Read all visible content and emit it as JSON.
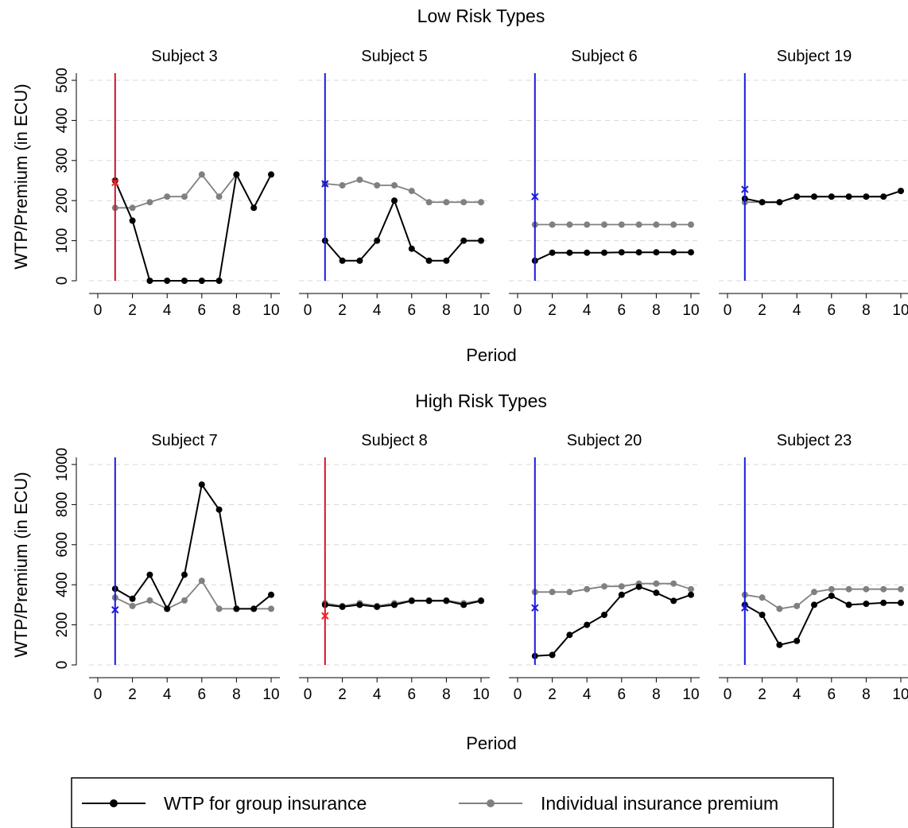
{
  "colors": {
    "wtp": "#000000",
    "premium": "#808080",
    "vline_red": "#d0112b",
    "vline_blue": "#1a1adb",
    "marker_red": "#ff2020",
    "marker_blue": "#1a1adb",
    "grid": "#d8d8d8"
  },
  "legend": {
    "wtp_label": "WTP for group insurance",
    "premium_label": "Individual insurance premium"
  },
  "chart_data": [
    {
      "type": "line",
      "title": "Low Risk Types",
      "xlabel": "Period",
      "ylabel": "WTP/Premium (in ECU)",
      "xlim": [
        0,
        10
      ],
      "xticks": [
        0,
        2,
        4,
        6,
        8,
        10
      ],
      "ylim": [
        0,
        500
      ],
      "yticks": [
        0,
        100,
        200,
        300,
        400,
        500
      ],
      "grid": true,
      "legend_position": "bottom",
      "panels": [
        {
          "subtitle": "Subject 3",
          "vline": {
            "x": 1,
            "color": "red"
          },
          "marker": {
            "x": 1,
            "y": 245,
            "color": "red"
          },
          "series": [
            {
              "key": "wtp",
              "x": [
                1,
                2,
                3,
                4,
                5,
                6,
                7,
                8,
                9,
                10
              ],
              "y": [
                250,
                150,
                0,
                0,
                0,
                0,
                0,
                265,
                182,
                265
              ]
            },
            {
              "key": "premium",
              "x": [
                1,
                2,
                3,
                4,
                5,
                6,
                7,
                8,
                9,
                10
              ],
              "y": [
                182,
                182,
                196,
                210,
                210,
                265,
                210,
                265,
                null,
                null
              ]
            }
          ]
        },
        {
          "subtitle": "Subject 5",
          "vline": {
            "x": 1,
            "color": "blue"
          },
          "marker": {
            "x": 1,
            "y": 242,
            "color": "blue"
          },
          "series": [
            {
              "key": "wtp",
              "x": [
                1,
                2,
                3,
                4,
                5,
                6,
                7,
                8,
                9,
                10
              ],
              "y": [
                100,
                50,
                50,
                100,
                200,
                80,
                50,
                50,
                100,
                100
              ]
            },
            {
              "key": "premium",
              "x": [
                1,
                2,
                3,
                4,
                5,
                6,
                7,
                8,
                9,
                10
              ],
              "y": [
                242,
                238,
                252,
                238,
                238,
                224,
                196,
                196,
                196,
                196
              ]
            }
          ]
        },
        {
          "subtitle": "Subject 6",
          "vline": {
            "x": 1,
            "color": "blue"
          },
          "marker": {
            "x": 1,
            "y": 210,
            "color": "blue"
          },
          "series": [
            {
              "key": "wtp",
              "x": [
                1,
                2,
                3,
                4,
                5,
                6,
                7,
                8,
                9,
                10
              ],
              "y": [
                50,
                70,
                70,
                70,
                70,
                71,
                71,
                71,
                71,
                71
              ]
            },
            {
              "key": "premium",
              "x": [
                1,
                2,
                3,
                4,
                5,
                6,
                7,
                8,
                9,
                10
              ],
              "y": [
                140,
                140,
                140,
                140,
                140,
                140,
                140,
                140,
                140,
                140
              ]
            }
          ]
        },
        {
          "subtitle": "Subject 19",
          "vline": {
            "x": 1,
            "color": "blue"
          },
          "marker": {
            "x": 1,
            "y": 228,
            "color": "blue"
          },
          "series": [
            {
              "key": "wtp",
              "x": [
                1,
                2,
                3,
                4,
                5,
                6,
                7,
                8,
                9,
                10
              ],
              "y": [
                205,
                196,
                196,
                210,
                210,
                210,
                210,
                210,
                210,
                224
              ]
            },
            {
              "key": "premium",
              "x": [
                1,
                2,
                3,
                4,
                5,
                6,
                7,
                8,
                9,
                10
              ],
              "y": [
                196,
                196,
                196,
                210,
                210,
                210,
                210,
                210,
                210,
                224
              ]
            }
          ]
        }
      ]
    },
    {
      "type": "line",
      "title": "High Risk Types",
      "xlabel": "Period",
      "ylabel": "WTP/Premium (in ECU)",
      "xlim": [
        0,
        10
      ],
      "xticks": [
        0,
        2,
        4,
        6,
        8,
        10
      ],
      "ylim": [
        0,
        1000
      ],
      "yticks": [
        0,
        200,
        400,
        600,
        800,
        1000
      ],
      "grid": true,
      "legend_position": "bottom",
      "panels": [
        {
          "subtitle": "Subject 7",
          "vline": {
            "x": 1,
            "color": "blue"
          },
          "marker": {
            "x": 1,
            "y": 275,
            "color": "blue"
          },
          "series": [
            {
              "key": "wtp",
              "x": [
                1,
                2,
                3,
                4,
                5,
                6,
                7,
                8,
                9,
                10
              ],
              "y": [
                380,
                330,
                450,
                280,
                450,
                900,
                775,
                280,
                280,
                350
              ]
            },
            {
              "key": "premium",
              "x": [
                1,
                2,
                3,
                4,
                5,
                6,
                7,
                8,
                9,
                10
              ],
              "y": [
                336,
                294,
                322,
                280,
                322,
                420,
                280,
                280,
                280,
                280
              ]
            }
          ]
        },
        {
          "subtitle": "Subject 8",
          "vline": {
            "x": 1,
            "color": "red"
          },
          "marker": {
            "x": 1,
            "y": 245,
            "color": "red"
          },
          "series": [
            {
              "key": "wtp",
              "x": [
                1,
                2,
                3,
                4,
                5,
                6,
                7,
                8,
                9,
                10
              ],
              "y": [
                300,
                290,
                300,
                290,
                300,
                320,
                320,
                320,
                300,
                320
              ]
            },
            {
              "key": "premium",
              "x": [
                1,
                2,
                3,
                4,
                5,
                6,
                7,
                8,
                9,
                10
              ],
              "y": [
                308,
                294,
                308,
                294,
                308,
                322,
                322,
                322,
                308,
                322
              ]
            }
          ]
        },
        {
          "subtitle": "Subject 20",
          "vline": {
            "x": 1,
            "color": "blue"
          },
          "marker": {
            "x": 1,
            "y": 285,
            "color": "blue"
          },
          "series": [
            {
              "key": "wtp",
              "x": [
                1,
                2,
                3,
                4,
                5,
                6,
                7,
                8,
                9,
                10
              ],
              "y": [
                45,
                50,
                150,
                200,
                250,
                350,
                390,
                360,
                320,
                350
              ]
            },
            {
              "key": "premium",
              "x": [
                1,
                2,
                3,
                4,
                5,
                6,
                7,
                8,
                9,
                10
              ],
              "y": [
                364,
                364,
                364,
                378,
                392,
                392,
                406,
                406,
                406,
                378
              ]
            }
          ]
        },
        {
          "subtitle": "Subject 23",
          "vline": {
            "x": 1,
            "color": "blue"
          },
          "marker": {
            "x": 1,
            "y": 285,
            "color": "blue"
          },
          "series": [
            {
              "key": "wtp",
              "x": [
                1,
                2,
                3,
                4,
                5,
                6,
                7,
                8,
                9,
                10
              ],
              "y": [
                300,
                250,
                100,
                120,
                300,
                345,
                300,
                305,
                310,
                310
              ]
            },
            {
              "key": "premium",
              "x": [
                1,
                2,
                3,
                4,
                5,
                6,
                7,
                8,
                9,
                10
              ],
              "y": [
                350,
                336,
                280,
                294,
                364,
                378,
                378,
                378,
                378,
                378
              ]
            }
          ]
        }
      ]
    }
  ]
}
